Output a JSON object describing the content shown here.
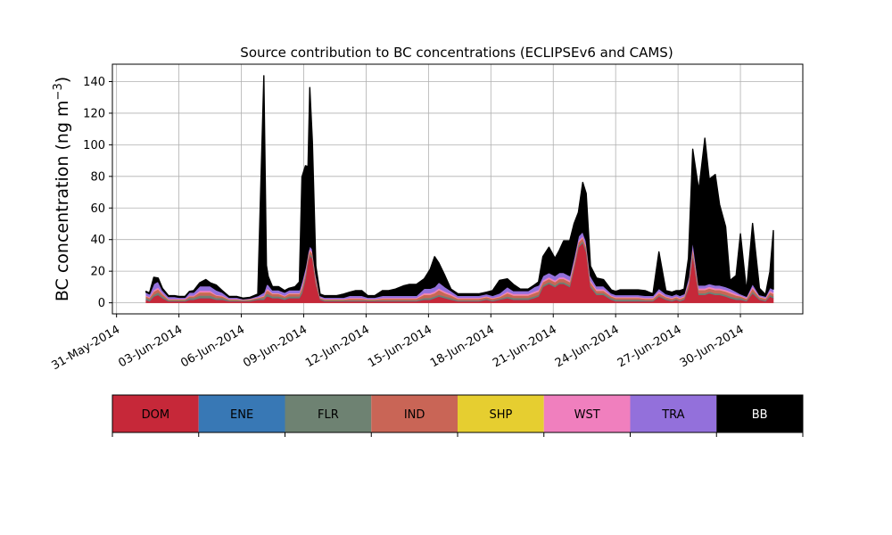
{
  "chart_data": {
    "type": "area",
    "stacked": true,
    "title": "Source contribution to BC concentrations (ECLIPSEv6 and CAMS)",
    "ylabel_main": "BC concentration (ng m",
    "ylabel_sup": "−3",
    "ylabel_close": ")",
    "xlabel": "",
    "ylim": [
      -7,
      151
    ],
    "xlim_days": [
      -0.2,
      33
    ],
    "grid": true,
    "x_ticks": [
      "31-May-2014",
      "03-Jun-2014",
      "06-Jun-2014",
      "09-Jun-2014",
      "12-Jun-2014",
      "15-Jun-2014",
      "18-Jun-2014",
      "21-Jun-2014",
      "24-Jun-2014",
      "27-Jun-2014",
      "30-Jun-2014"
    ],
    "y_ticks": [
      0,
      20,
      40,
      60,
      80,
      100,
      120,
      140
    ],
    "x": [
      "2014-06-01T10:00",
      "2014-06-01T14:00",
      "2014-06-01T19:00",
      "2014-06-02T00:00",
      "2014-06-02T05:00",
      "2014-06-02T12:00",
      "2014-06-02T19:00",
      "2014-06-03T00:00",
      "2014-06-03T07:00",
      "2014-06-03T12:00",
      "2014-06-03T17:00",
      "2014-06-04T00:00",
      "2014-06-04T07:00",
      "2014-06-04T12:00",
      "2014-06-04T19:00",
      "2014-06-05T02:00",
      "2014-06-05T10:00",
      "2014-06-05T19:00",
      "2014-06-06T02:00",
      "2014-06-06T10:00",
      "2014-06-06T19:00",
      "2014-06-07T02:00",
      "2014-06-07T05:00",
      "2014-06-07T07:00",
      "2014-06-07T12:00",
      "2014-06-07T19:00",
      "2014-06-08T02:00",
      "2014-06-08T07:00",
      "2014-06-08T14:00",
      "2014-06-08T19:00",
      "2014-06-08T22:00",
      "2014-06-09T02:00",
      "2014-06-09T05:00",
      "2014-06-09T07:00",
      "2014-06-09T10:00",
      "2014-06-09T14:00",
      "2014-06-09T19:00",
      "2014-06-10T00:00",
      "2014-06-10T07:00",
      "2014-06-10T14:00",
      "2014-06-10T22:00",
      "2014-06-11T05:00",
      "2014-06-11T12:00",
      "2014-06-11T19:00",
      "2014-06-12T02:00",
      "2014-06-12T10:00",
      "2014-06-12T19:00",
      "2014-06-13T02:00",
      "2014-06-13T10:00",
      "2014-06-13T19:00",
      "2014-06-14T02:00",
      "2014-06-14T10:00",
      "2014-06-14T19:00",
      "2014-06-15T02:00",
      "2014-06-15T07:00",
      "2014-06-15T12:00",
      "2014-06-15T19:00",
      "2014-06-16T02:00",
      "2014-06-16T10:00",
      "2014-06-16T19:00",
      "2014-06-17T02:00",
      "2014-06-17T10:00",
      "2014-06-17T19:00",
      "2014-06-18T02:00",
      "2014-06-18T10:00",
      "2014-06-18T19:00",
      "2014-06-19T02:00",
      "2014-06-19T10:00",
      "2014-06-19T19:00",
      "2014-06-20T02:00",
      "2014-06-20T07:00",
      "2014-06-20T12:00",
      "2014-06-20T19:00",
      "2014-06-21T02:00",
      "2014-06-21T07:00",
      "2014-06-21T12:00",
      "2014-06-21T19:00",
      "2014-06-22T00:00",
      "2014-06-22T05:00",
      "2014-06-22T10:00",
      "2014-06-22T14:00",
      "2014-06-22T19:00",
      "2014-06-23T02:00",
      "2014-06-23T10:00",
      "2014-06-23T19:00",
      "2014-06-24T00:00",
      "2014-06-24T05:00",
      "2014-06-24T12:00",
      "2014-06-24T19:00",
      "2014-06-25T02:00",
      "2014-06-25T10:00",
      "2014-06-25T19:00",
      "2014-06-26T02:00",
      "2014-06-26T10:00",
      "2014-06-26T17:00",
      "2014-06-26T22:00",
      "2014-06-27T02:00",
      "2014-06-27T07:00",
      "2014-06-27T12:00",
      "2014-06-27T17:00",
      "2014-06-28T00:00",
      "2014-06-28T07:00",
      "2014-06-28T12:00",
      "2014-06-28T19:00",
      "2014-06-29T00:00",
      "2014-06-29T07:00",
      "2014-06-29T12:00",
      "2014-06-29T19:00",
      "2014-06-30T00:00",
      "2014-06-30T07:00",
      "2014-06-30T14:00",
      "2014-06-30T22:00",
      "2014-07-01T05:00",
      "2014-07-01T10:00",
      "2014-07-01T14:00"
    ],
    "series": [
      {
        "name": "DOM",
        "color": "#c62839",
        "values": [
          2,
          1,
          4,
          5,
          3,
          1,
          1,
          1,
          1,
          2,
          2,
          3,
          3,
          3,
          2,
          2,
          1,
          1,
          1,
          1,
          2,
          2,
          4,
          4,
          3,
          3,
          2,
          3,
          3,
          3,
          6,
          15,
          26,
          30,
          28,
          12,
          2,
          1,
          1,
          1,
          1,
          1,
          1,
          1,
          1,
          1,
          1,
          1,
          1,
          1,
          1,
          1,
          2,
          2,
          3,
          4,
          3,
          2,
          1,
          1,
          1,
          1,
          2,
          1,
          2,
          3,
          2,
          2,
          2,
          3,
          4,
          10,
          12,
          10,
          12,
          12,
          10,
          22,
          35,
          38,
          32,
          10,
          5,
          5,
          2,
          1,
          1,
          1,
          1,
          1,
          1,
          1,
          4,
          2,
          1,
          2,
          1,
          2,
          9,
          30,
          5,
          5,
          6,
          5,
          5,
          4,
          3,
          2,
          2,
          1,
          6,
          2,
          1,
          4,
          3
        ]
      },
      {
        "name": "ENE",
        "color": "#3878b5",
        "values": [
          0.1,
          0.1,
          0.1,
          0.1,
          0.1,
          0.1,
          0.1,
          0.1,
          0.1,
          0.1,
          0.1,
          0.1,
          0.1,
          0.1,
          0.1,
          0.1,
          0.1,
          0.1,
          0.1,
          0.1,
          0.1,
          0.1,
          0.1,
          0.1,
          0.1,
          0.1,
          0.1,
          0.1,
          0.1,
          0.1,
          0.1,
          0.1,
          0.1,
          0.1,
          0.1,
          0.1,
          0.1,
          0.1,
          0.1,
          0.1,
          0.1,
          0.1,
          0.1,
          0.1,
          0.1,
          0.1,
          0.1,
          0.1,
          0.1,
          0.1,
          0.1,
          0.1,
          0.1,
          0.1,
          0.1,
          0.1,
          0.1,
          0.1,
          0.1,
          0.1,
          0.1,
          0.1,
          0.1,
          0.1,
          0.1,
          0.1,
          0.1,
          0.1,
          0.1,
          0.1,
          0.1,
          0.1,
          0.1,
          0.1,
          0.1,
          0.1,
          0.1,
          0.1,
          0.1,
          0.1,
          0.1,
          0.1,
          0.1,
          0.1,
          0.1,
          0.1,
          0.1,
          0.1,
          0.1,
          0.1,
          0.1,
          0.1,
          0.1,
          0.1,
          0.1,
          0.1,
          0.1,
          0.1,
          0.1,
          0.1,
          0.1,
          0.1,
          0.1,
          0.1,
          0.1,
          0.1,
          0.1,
          0.1,
          0.1,
          0.1,
          0.1,
          0.1,
          0.1,
          0.1,
          0.1
        ]
      },
      {
        "name": "FLR",
        "color": "#6e8272",
        "values": [
          1,
          1,
          1,
          1.5,
          1,
          0.5,
          0.5,
          0.5,
          0.5,
          1,
          1,
          1.5,
          1.5,
          1.5,
          1,
          1,
          0.5,
          0.5,
          0.3,
          0.5,
          0.5,
          1,
          1.5,
          1.5,
          1,
          1,
          1,
          1,
          1,
          1,
          1.5,
          1.5,
          1,
          1,
          1,
          1,
          0.5,
          0.5,
          0.5,
          0.5,
          0.5,
          0.5,
          0.5,
          0.5,
          0.5,
          0.5,
          0.5,
          0.5,
          0.5,
          0.5,
          0.5,
          0.5,
          1,
          1,
          1,
          1,
          1,
          1,
          0.5,
          0.5,
          0.5,
          0.5,
          0.5,
          0.5,
          0.5,
          1,
          1,
          1,
          1,
          1,
          1,
          1,
          1,
          1,
          1,
          1,
          1,
          1,
          1,
          1,
          1,
          1,
          1,
          1,
          1,
          1,
          1,
          1,
          1,
          1,
          0.5,
          0.5,
          0.5,
          0.5,
          0.5,
          0.5,
          0.5,
          0.5,
          1,
          1,
          1,
          1,
          1,
          1,
          1,
          1,
          1,
          1,
          1,
          0.5,
          1,
          0.5,
          0.5,
          1,
          1
        ]
      },
      {
        "name": "IND",
        "color": "#c96556",
        "values": [
          1,
          1,
          2,
          2,
          1.5,
          0.5,
          0.5,
          0.5,
          0.5,
          1,
          1,
          2,
          2,
          2,
          1.5,
          1,
          0.5,
          0.5,
          0.3,
          0.5,
          0.5,
          1,
          2,
          2,
          1.5,
          1.5,
          1,
          1.5,
          1.5,
          1.5,
          2,
          2,
          2,
          2,
          2,
          2,
          0.5,
          0.5,
          0.5,
          0.5,
          0.5,
          1,
          1,
          1,
          0.5,
          0.5,
          1,
          1,
          1,
          1,
          1,
          1,
          2,
          2,
          2,
          3,
          2,
          1.5,
          1,
          1,
          1,
          1,
          1,
          1,
          1,
          2,
          1.5,
          1.5,
          1.5,
          2,
          2,
          2,
          2,
          2,
          2,
          2,
          2,
          2,
          2,
          2,
          2,
          2,
          1.5,
          1.5,
          1,
          1,
          1,
          1,
          1,
          1,
          1,
          1,
          1.5,
          1,
          1,
          1,
          1,
          1,
          2,
          3,
          2,
          2,
          2,
          2,
          2,
          2,
          2,
          1.5,
          1,
          1,
          2,
          1,
          1,
          1.5,
          1.5
        ]
      },
      {
        "name": "SHP",
        "color": "#e6ce30",
        "values": [
          0.1,
          0.1,
          0.1,
          0.1,
          0.1,
          0.1,
          0.1,
          0.1,
          0.1,
          0.1,
          0.1,
          0.1,
          0.1,
          0.1,
          0.1,
          0.1,
          0.1,
          0.1,
          0.1,
          0.1,
          0.1,
          0.1,
          0.1,
          0.1,
          0.1,
          0.1,
          0.1,
          0.1,
          0.1,
          0.1,
          0.1,
          0.1,
          0.1,
          0.1,
          0.1,
          0.1,
          0.1,
          0.1,
          0.1,
          0.1,
          0.1,
          0.1,
          0.1,
          0.1,
          0.1,
          0.1,
          0.1,
          0.1,
          0.1,
          0.1,
          0.1,
          0.1,
          0.1,
          0.1,
          0.1,
          0.1,
          0.1,
          0.1,
          0.1,
          0.1,
          0.1,
          0.1,
          0.1,
          0.1,
          0.1,
          0.1,
          0.1,
          0.1,
          0.1,
          0.1,
          0.1,
          0.1,
          0.1,
          0.1,
          0.1,
          0.1,
          0.1,
          0.1,
          0.1,
          0.1,
          0.1,
          0.1,
          0.1,
          0.1,
          0.1,
          0.1,
          0.1,
          0.1,
          0.1,
          0.1,
          0.1,
          0.1,
          0.1,
          0.1,
          0.1,
          0.1,
          0.1,
          0.1,
          0.1,
          0.1,
          0.1,
          0.1,
          0.1,
          0.1,
          0.1,
          0.1,
          0.1,
          0.1,
          0.1,
          0.1,
          0.1,
          0.1,
          0.1,
          0.1,
          0.1
        ]
      },
      {
        "name": "WST",
        "color": "#f07fbe",
        "values": [
          0.5,
          0.5,
          1,
          1,
          0.5,
          0.3,
          0.3,
          0.3,
          0.3,
          0.5,
          0.5,
          1,
          1,
          1,
          0.5,
          0.5,
          0.3,
          0.3,
          0.2,
          0.3,
          0.3,
          0.5,
          1,
          1,
          0.5,
          0.5,
          0.5,
          0.5,
          0.5,
          0.5,
          1,
          1,
          1,
          1,
          1,
          1,
          0.3,
          0.3,
          0.3,
          0.3,
          0.3,
          0.5,
          0.5,
          0.5,
          0.3,
          0.3,
          0.5,
          0.5,
          0.5,
          0.5,
          0.5,
          0.5,
          1,
          1,
          1,
          1,
          1,
          1,
          0.5,
          0.5,
          0.5,
          0.5,
          0.5,
          0.5,
          0.5,
          1,
          1,
          1,
          1,
          1,
          1,
          1,
          1,
          1,
          1,
          1,
          1,
          1,
          1,
          1,
          1,
          1,
          1,
          1,
          0.5,
          0.5,
          0.5,
          0.5,
          0.5,
          0.5,
          0.5,
          0.5,
          1,
          0.5,
          0.5,
          0.5,
          0.5,
          0.5,
          1,
          1,
          1,
          1,
          1,
          1,
          1,
          1,
          1,
          1,
          0.5,
          0.5,
          1,
          0.5,
          0.5,
          1,
          1
        ]
      },
      {
        "name": "TRA",
        "color": "#9370db",
        "values": [
          2,
          2,
          4,
          4,
          2,
          1.5,
          1.5,
          1,
          1,
          2,
          2,
          3,
          3,
          3,
          3,
          2,
          1,
          1,
          0.5,
          0.5,
          1,
          2,
          3,
          3,
          2,
          2,
          2,
          2,
          2,
          2,
          3,
          3,
          2,
          2,
          2,
          2,
          1,
          1,
          1,
          1,
          1,
          1.5,
          1.5,
          1.5,
          1,
          1,
          1.5,
          1.5,
          1.5,
          1.5,
          1.5,
          1.5,
          3,
          3,
          3,
          4,
          3,
          2,
          1.5,
          1.5,
          1.5,
          1.5,
          1.5,
          1.5,
          2,
          3,
          2,
          2,
          2,
          3,
          3,
          3,
          3,
          3,
          3,
          3,
          3,
          3,
          3,
          3,
          3,
          3,
          2,
          2,
          1.5,
          1.5,
          1.5,
          1.5,
          1.5,
          1.5,
          1.5,
          1.5,
          2,
          1.5,
          1.5,
          1.5,
          1.5,
          1.5,
          3,
          5,
          2,
          2,
          2,
          2,
          2,
          2,
          2,
          1.5,
          1,
          1,
          2,
          1,
          1,
          2,
          2
        ]
      },
      {
        "name": "BB",
        "color": "#000000",
        "values": [
          0.5,
          0.5,
          4,
          2,
          1,
          0.5,
          0.5,
          0.5,
          0.5,
          0.5,
          1,
          2,
          4,
          2,
          3,
          1,
          0.5,
          0.5,
          0.5,
          0.5,
          1,
          137,
          12,
          5,
          2,
          2,
          1,
          1,
          2,
          5,
          66,
          64,
          54,
          100,
          68,
          5,
          1,
          1,
          1,
          1,
          2,
          2,
          3,
          3,
          1,
          1,
          3,
          3,
          4,
          6,
          7,
          7,
          6,
          12,
          19,
          12,
          7,
          1,
          1,
          1,
          1,
          1,
          1,
          3,
          8,
          5,
          4,
          1,
          1,
          1,
          2,
          12,
          16,
          11,
          14,
          20,
          22,
          21,
          15,
          31,
          30,
          6,
          5,
          4,
          2,
          2,
          3,
          3,
          3,
          3,
          3,
          1,
          23,
          2,
          2,
          2,
          3,
          3,
          12,
          57,
          60,
          93,
          66,
          70,
          51,
          38,
          5,
          10,
          38,
          3,
          38,
          4,
          1,
          10,
          37
        ]
      }
    ],
    "legend": [
      "DOM",
      "ENE",
      "FLR",
      "IND",
      "SHP",
      "WST",
      "TRA",
      "BB"
    ],
    "legend_placement": "below"
  }
}
